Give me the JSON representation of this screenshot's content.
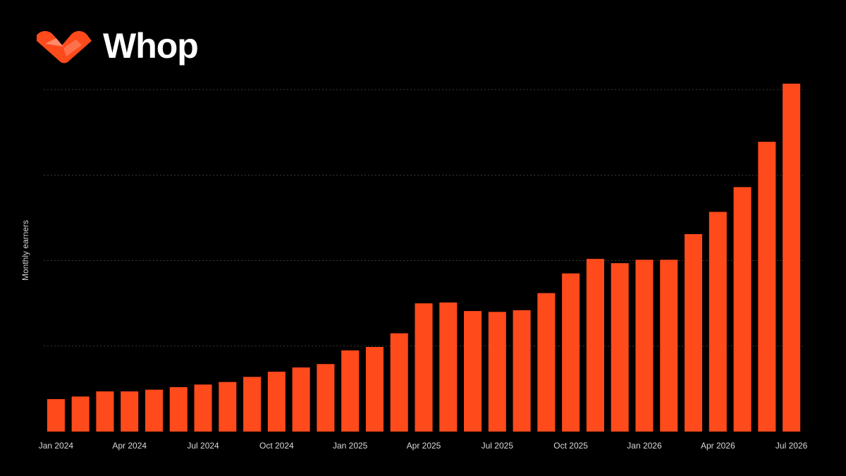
{
  "brand": {
    "name": "Whop",
    "accent_color": "#FF4A1C",
    "logo_icon": "whop-logo-icon"
  },
  "chart_data": {
    "type": "bar",
    "title": "",
    "xlabel": "",
    "ylabel": "Monthly earners",
    "grid": true,
    "bar_color": "#FF4A1C",
    "categories": [
      "Jan 2024",
      "Feb 2024",
      "Mar 2024",
      "Apr 2024",
      "May 2024",
      "Jun 2024",
      "Jul 2024",
      "Aug 2024",
      "Sep 2024",
      "Oct 2024",
      "Nov 2024",
      "Dec 2024",
      "Jan 2025",
      "Feb 2025",
      "Mar 2025",
      "Apr 2025",
      "May 2025",
      "Jun 2025",
      "Jul 2025",
      "Aug 2025",
      "Sep 2025",
      "Oct 2025",
      "Nov 2025",
      "Dec 2025",
      "Jan 2026",
      "Feb 2026",
      "Mar 2026",
      "Apr 2026",
      "May 2026",
      "Jun 2026",
      "Jul 2026"
    ],
    "x_tick_labels": [
      "Jan 2024",
      "Apr 2024",
      "Jul 2024",
      "Oct 2024",
      "Jan 2025",
      "Apr 2025",
      "Jul 2025",
      "Oct 2025",
      "Jan 2026",
      "Apr 2026",
      "Jul 2026"
    ],
    "values": [
      0.38,
      0.41,
      0.47,
      0.47,
      0.49,
      0.52,
      0.55,
      0.58,
      0.64,
      0.7,
      0.75,
      0.79,
      0.95,
      0.99,
      1.15,
      1.5,
      1.51,
      1.41,
      1.4,
      1.42,
      1.62,
      1.85,
      2.02,
      1.97,
      2.01,
      2.01,
      2.31,
      2.57,
      2.86,
      3.39,
      4.07
    ],
    "ylim": [
      0,
      4.1
    ],
    "yticks": [
      0,
      1,
      2,
      3,
      4
    ]
  }
}
